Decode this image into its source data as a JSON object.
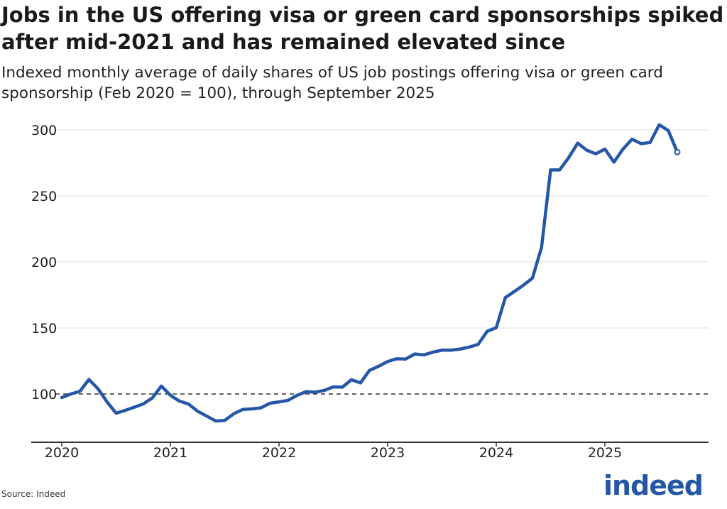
{
  "chart_data": {
    "type": "line",
    "title": "Jobs in the US offering visa or green card sponsorships spiked after mid-2021 and has remained elevated since",
    "subtitle": "Indexed monthly average of daily shares of US job postings offering visa or green card sponsorship (Feb 2020 = 100), through September 2025",
    "xlabel": "",
    "ylabel": "",
    "ylim": [
      70,
      310
    ],
    "yticks": [
      "100",
      "150",
      "200",
      "250",
      "300"
    ],
    "xticks": [
      "2020",
      "2021",
      "2022",
      "2023",
      "2024",
      "2025"
    ],
    "reference_line": 100,
    "grid": "horizontal",
    "line_color": "#2557a7",
    "x": [
      "2020-01",
      "2020-02",
      "2020-03",
      "2020-04",
      "2020-05",
      "2020-06",
      "2020-07",
      "2020-08",
      "2020-09",
      "2020-10",
      "2020-11",
      "2020-12",
      "2021-01",
      "2021-02",
      "2021-03",
      "2021-04",
      "2021-05",
      "2021-06",
      "2021-07",
      "2021-08",
      "2021-09",
      "2021-10",
      "2021-11",
      "2021-12",
      "2022-01",
      "2022-02",
      "2022-03",
      "2022-04",
      "2022-05",
      "2022-06",
      "2022-07",
      "2022-08",
      "2022-09",
      "2022-10",
      "2022-11",
      "2022-12",
      "2023-01",
      "2023-02",
      "2023-03",
      "2023-04",
      "2023-05",
      "2023-06",
      "2023-07",
      "2023-08",
      "2023-09",
      "2023-10",
      "2023-11",
      "2023-12",
      "2024-01",
      "2024-02",
      "2024-03",
      "2024-04",
      "2024-05",
      "2024-06",
      "2024-07",
      "2024-08",
      "2024-09",
      "2024-10",
      "2024-11",
      "2024-12",
      "2025-01",
      "2025-02",
      "2025-03",
      "2025-04",
      "2025-05",
      "2025-06",
      "2025-07",
      "2025-08",
      "2025-09"
    ],
    "values": [
      97.3,
      100,
      102,
      111,
      104,
      94,
      85.5,
      87.6,
      90,
      92.5,
      97,
      106,
      99,
      94.6,
      92.4,
      87,
      83.3,
      79.6,
      80,
      85,
      88.3,
      88.7,
      89.5,
      93,
      94,
      95.2,
      99,
      101.8,
      101.4,
      102.7,
      105.4,
      105.2,
      110.8,
      108.4,
      117.9,
      121,
      124.6,
      126.7,
      126.5,
      130.3,
      129.6,
      131.7,
      133.2,
      133.2,
      134,
      135.5,
      137.6,
      147.5,
      150.2,
      173,
      177.6,
      182.4,
      187.8,
      211,
      269.7,
      269.7,
      279,
      290,
      284.6,
      281.9,
      285.5,
      275.6,
      285.5,
      293,
      289.6,
      290.5,
      303.9,
      299.5,
      283.2
    ]
  },
  "source": "Source: Indeed",
  "logo_text": "indeed"
}
